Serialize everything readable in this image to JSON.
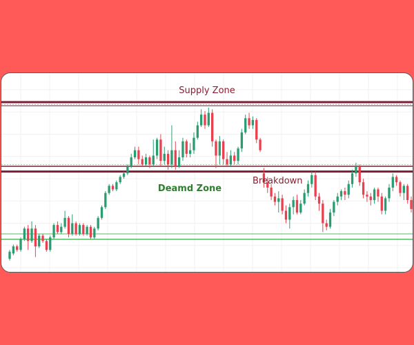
{
  "colors": {
    "background": "#ff5a58",
    "panel": "#ffffff",
    "up_candle": "#2a9d70",
    "down_candle": "#e8404f",
    "supply_line": "#7b1d33",
    "demand_line": "#59b866",
    "supply_text": "#8b1d32",
    "demand_text": "#2f7d2f"
  },
  "chart_data": {
    "type": "candlestick",
    "title": "",
    "xlabel": "",
    "ylabel": "",
    "grid": true,
    "ylim": [
      0,
      100
    ],
    "annotations": {
      "supply_zone": "Supply Zone",
      "demand_zone": "Deamd Zone",
      "breakdown": "Breakdown"
    },
    "zones": {
      "supply_top": 93,
      "supply_bottom": 91,
      "resistance_top": 57,
      "resistance_bottom": 54,
      "demand_top": 19,
      "demand_bottom": 16
    },
    "candles": [
      [
        5,
        9,
        4,
        10
      ],
      [
        8,
        12,
        7,
        13
      ],
      [
        12,
        10,
        9,
        13
      ],
      [
        10,
        16,
        9,
        17
      ],
      [
        16,
        22,
        15,
        23
      ],
      [
        22,
        15,
        10,
        24
      ],
      [
        15,
        22,
        14,
        26
      ],
      [
        22,
        12,
        6,
        24
      ],
      [
        12,
        18,
        11,
        19
      ],
      [
        18,
        15,
        14,
        19
      ],
      [
        15,
        10,
        9,
        16
      ],
      [
        10,
        17,
        9,
        18
      ],
      [
        17,
        24,
        16,
        25
      ],
      [
        24,
        20,
        19,
        26
      ],
      [
        20,
        23,
        19,
        25
      ],
      [
        23,
        28,
        22,
        32
      ],
      [
        28,
        19,
        17,
        29
      ],
      [
        19,
        25,
        18,
        30
      ],
      [
        25,
        19,
        18,
        26
      ],
      [
        19,
        24,
        18,
        25
      ],
      [
        24,
        19,
        18,
        25
      ],
      [
        19,
        23,
        18,
        24
      ],
      [
        23,
        17,
        16,
        24
      ],
      [
        17,
        22,
        16,
        23
      ],
      [
        22,
        28,
        21,
        29
      ],
      [
        28,
        34,
        27,
        35
      ],
      [
        34,
        42,
        33,
        43
      ],
      [
        42,
        46,
        41,
        47
      ],
      [
        46,
        44,
        43,
        47
      ],
      [
        44,
        48,
        43,
        49
      ],
      [
        48,
        51,
        47,
        52
      ],
      [
        51,
        53,
        50,
        54
      ],
      [
        53,
        57,
        52,
        58
      ],
      [
        57,
        62,
        56,
        64
      ],
      [
        62,
        66,
        61,
        68
      ],
      [
        66,
        61,
        58,
        68
      ],
      [
        61,
        58,
        57,
        63
      ],
      [
        58,
        62,
        57,
        64
      ],
      [
        62,
        58,
        56,
        63
      ],
      [
        58,
        63,
        57,
        72
      ],
      [
        63,
        72,
        61,
        73
      ],
      [
        72,
        60,
        57,
        75
      ],
      [
        60,
        64,
        58,
        68
      ],
      [
        64,
        58,
        55,
        66
      ],
      [
        58,
        66,
        56,
        80
      ],
      [
        66,
        57,
        55,
        71
      ],
      [
        57,
        62,
        56,
        66
      ],
      [
        62,
        71,
        60,
        73
      ],
      [
        71,
        64,
        62,
        72
      ],
      [
        64,
        66,
        62,
        70
      ],
      [
        66,
        73,
        64,
        76
      ],
      [
        73,
        80,
        72,
        82
      ],
      [
        80,
        86,
        79,
        89
      ],
      [
        86,
        80,
        78,
        88
      ],
      [
        80,
        87,
        79,
        90
      ],
      [
        87,
        71,
        68,
        89
      ],
      [
        71,
        63,
        56,
        72
      ],
      [
        63,
        71,
        58,
        74
      ],
      [
        71,
        61,
        58,
        72
      ],
      [
        61,
        58,
        57,
        65
      ],
      [
        58,
        63,
        57,
        66
      ],
      [
        63,
        60,
        58,
        65
      ],
      [
        60,
        67,
        58,
        68
      ],
      [
        67,
        76,
        65,
        78
      ],
      [
        76,
        84,
        75,
        86
      ],
      [
        84,
        80,
        78,
        87
      ],
      [
        80,
        83,
        78,
        85
      ],
      [
        83,
        72,
        70,
        84
      ],
      [
        72,
        66,
        65,
        73
      ],
      [
        53,
        48,
        45,
        56
      ],
      [
        48,
        45,
        42,
        51
      ],
      [
        45,
        40,
        38,
        47
      ],
      [
        40,
        37,
        35,
        42
      ],
      [
        37,
        39,
        31,
        43
      ],
      [
        39,
        32,
        30,
        41
      ],
      [
        32,
        27,
        25,
        35
      ],
      [
        27,
        34,
        22,
        36
      ],
      [
        34,
        38,
        30,
        40
      ],
      [
        38,
        31,
        30,
        41
      ],
      [
        31,
        36,
        30,
        38
      ],
      [
        36,
        42,
        35,
        44
      ],
      [
        42,
        47,
        40,
        49
      ],
      [
        47,
        52,
        45,
        54
      ],
      [
        52,
        40,
        38,
        54
      ],
      [
        40,
        36,
        32,
        42
      ],
      [
        36,
        25,
        20,
        38
      ],
      [
        25,
        23,
        21,
        27
      ],
      [
        23,
        31,
        22,
        33
      ],
      [
        31,
        37,
        29,
        38
      ],
      [
        37,
        40,
        35,
        42
      ],
      [
        40,
        43,
        38,
        44
      ],
      [
        43,
        41,
        38,
        45
      ],
      [
        41,
        47,
        39,
        49
      ],
      [
        47,
        53,
        45,
        55
      ],
      [
        53,
        57,
        51,
        59
      ],
      [
        57,
        48,
        46,
        58
      ],
      [
        48,
        41,
        39,
        50
      ],
      [
        41,
        40,
        37,
        43
      ],
      [
        40,
        38,
        35,
        42
      ],
      [
        38,
        44,
        36,
        45
      ],
      [
        44,
        40,
        37,
        45
      ],
      [
        40,
        32,
        30,
        42
      ],
      [
        32,
        39,
        30,
        40
      ],
      [
        39,
        45,
        37,
        47
      ],
      [
        45,
        51,
        43,
        53
      ],
      [
        51,
        48,
        46,
        52
      ],
      [
        48,
        42,
        40,
        49
      ],
      [
        42,
        46,
        38,
        47
      ],
      [
        46,
        38,
        36,
        47
      ],
      [
        38,
        33,
        31,
        40
      ]
    ]
  }
}
